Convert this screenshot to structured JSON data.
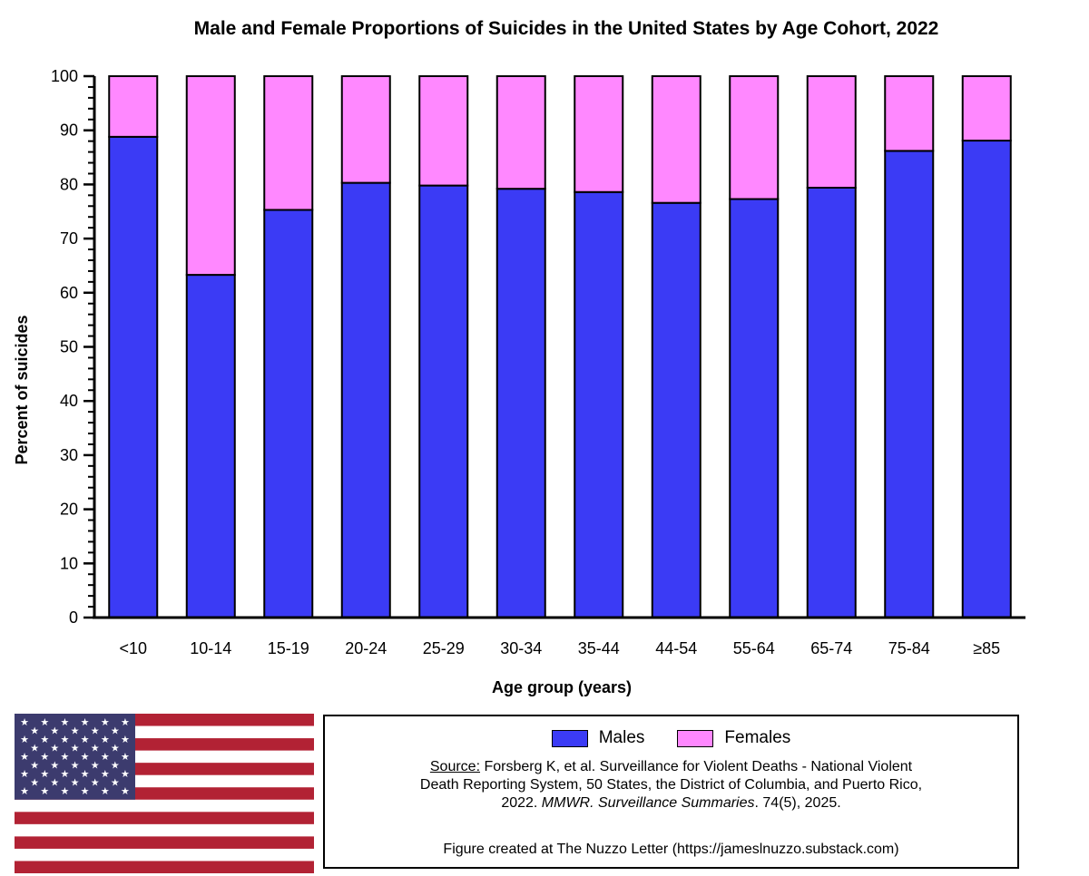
{
  "colors": {
    "males": "#3b3bf5",
    "females": "#ff88ff",
    "flag_red": "#b22234",
    "flag_white": "#ffffff",
    "flag_blue": "#3c3b6e"
  },
  "chart_data": {
    "type": "bar",
    "stacked": true,
    "title": "Male and Female Proportions of Suicides in the United States by Age Cohort, 2022",
    "xlabel": "Age group (years)",
    "ylabel": "Percent of suicides",
    "ylim": [
      0,
      100
    ],
    "yticks": [
      "0",
      "10",
      "20",
      "30",
      "40",
      "50",
      "60",
      "70",
      "80",
      "90",
      "100"
    ],
    "categories": [
      "<10",
      "10-14",
      "15-19",
      "20-24",
      "25-29",
      "30-34",
      "35-44",
      "44-54",
      "55-64",
      "65-74",
      "75-84",
      "≥85"
    ],
    "series": [
      {
        "name": "Males",
        "values": [
          88.8,
          63.3,
          75.3,
          80.3,
          79.8,
          79.2,
          78.6,
          76.6,
          77.3,
          79.4,
          86.2,
          88.1
        ]
      },
      {
        "name": "Females",
        "values": [
          11.2,
          36.7,
          24.7,
          19.7,
          20.2,
          20.8,
          21.4,
          23.4,
          22.7,
          20.6,
          13.8,
          11.9
        ]
      }
    ],
    "legend_position": "bottom-right"
  },
  "legend": {
    "males_label": "Males",
    "females_label": "Females"
  },
  "source": {
    "prefix": "Source:",
    "line1": " Forsberg K, et al. Surveillance for Violent Deaths - National Violent",
    "line2": "Death Reporting System, 50 States, the District of Columbia, and Puerto Rico,",
    "line3a": "2022. ",
    "journal": "MMWR. Surveillance Summaries",
    "line3b": ". 74(5), 2025."
  },
  "credit": "Figure created at The Nuzzo Letter (https://jameslnuzzo.substack.com)"
}
